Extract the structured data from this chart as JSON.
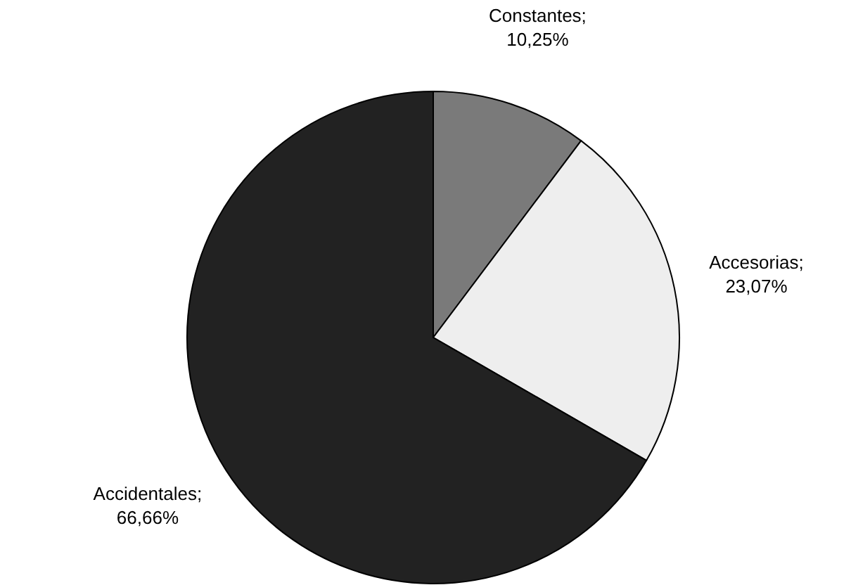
{
  "chart_data": {
    "type": "pie",
    "categories": [
      "Constantes",
      "Accesorias",
      "Accidentales"
    ],
    "values": [
      10.25,
      23.07,
      66.66
    ],
    "value_labels": [
      ";\n10,25%",
      ";\n23,07%",
      ";\n66,66%"
    ],
    "colors": [
      "#7a7a7a",
      "#eeeeee",
      "#222222"
    ]
  }
}
